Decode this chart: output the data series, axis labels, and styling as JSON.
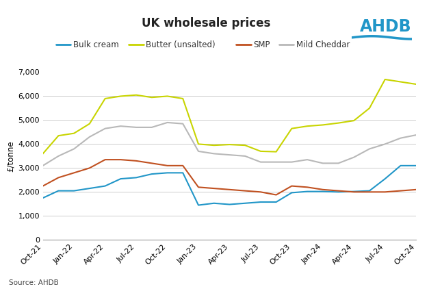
{
  "title": "UK wholesale prices",
  "ylabel": "£/tonne",
  "source": "Source: AHDB",
  "ylim": [
    0,
    7000
  ],
  "yticks": [
    0,
    1000,
    2000,
    3000,
    4000,
    5000,
    6000,
    7000
  ],
  "x_labels": [
    "Oct-21",
    "Jan-22",
    "Apr-22",
    "Jul-22",
    "Oct-22",
    "Jan-23",
    "Apr-23",
    "Jul-23",
    "Oct-23",
    "Jan-24",
    "Apr-24",
    "Jul-24",
    "Oct-24"
  ],
  "colors": {
    "bulk_cream": "#2196C8",
    "butter": "#c8d400",
    "smp": "#c05020",
    "mild_cheddar": "#b8b8b8"
  },
  "series": {
    "bulk_cream": [
      1750,
      2050,
      2050,
      2150,
      2250,
      2550,
      2600,
      2750,
      2800,
      2800,
      1450,
      1530,
      1480,
      1530,
      1580,
      1580,
      1970,
      2020,
      2020,
      2000,
      2020,
      2050,
      2550,
      3100,
      3100
    ],
    "butter": [
      3600,
      4350,
      4450,
      4850,
      5900,
      6000,
      6050,
      5950,
      6000,
      5900,
      4000,
      3950,
      3980,
      3950,
      3700,
      3680,
      4650,
      4750,
      4800,
      4880,
      4980,
      5500,
      6700,
      6600,
      6500
    ],
    "smp": [
      2250,
      2600,
      2800,
      3000,
      3350,
      3350,
      3300,
      3200,
      3100,
      3100,
      2200,
      2150,
      2100,
      2050,
      2000,
      1880,
      2250,
      2200,
      2100,
      2050,
      2000,
      2000,
      2000,
      2050,
      2100
    ],
    "mild_cheddar": [
      3100,
      3500,
      3800,
      4300,
      4650,
      4750,
      4700,
      4700,
      4900,
      4850,
      3700,
      3600,
      3550,
      3500,
      3250,
      3250,
      3250,
      3350,
      3200,
      3200,
      3450,
      3800,
      4000,
      4250,
      4380
    ]
  },
  "legend": [
    "Bulk cream",
    "Butter (unsalted)",
    "SMP",
    "Mild Cheddar"
  ],
  "background_color": "#ffffff",
  "grid_color": "#cccccc",
  "title_fontsize": 12,
  "label_fontsize": 8.5,
  "tick_fontsize": 8,
  "logo_color": "#2196C8"
}
